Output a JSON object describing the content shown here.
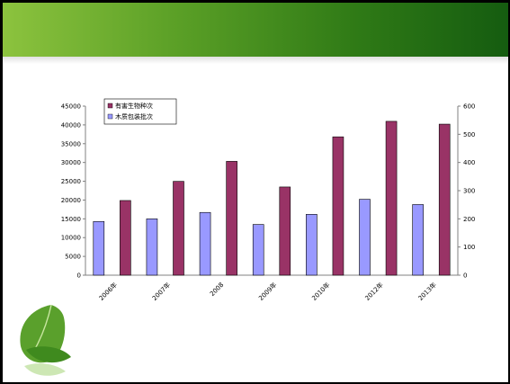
{
  "chart_data": {
    "type": "bar",
    "categories": [
      "2006年",
      "2007年",
      "2008",
      "2009年",
      "2010年",
      "2012年",
      "2013年"
    ],
    "series": [
      {
        "name": "有害生物种次",
        "axis": "right",
        "color": "#993366",
        "values": [
          265,
          333,
          404,
          313,
          491,
          546,
          536
        ]
      },
      {
        "name": "木质包装批次",
        "axis": "left",
        "color": "#9999ff",
        "values": [
          14300,
          15000,
          16700,
          13500,
          16200,
          20200,
          18800
        ]
      }
    ],
    "bar_order": [
      {
        "series": 1,
        "index": 0
      },
      {
        "series": 0,
        "index": 0
      },
      {
        "series": 1,
        "index": 1
      },
      {
        "series": 0,
        "index": 1
      },
      {
        "series": 1,
        "index": 2
      },
      {
        "series": 0,
        "index": 2
      },
      {
        "series": 1,
        "index": 3
      },
      {
        "series": 0,
        "index": 3
      },
      {
        "series": 1,
        "index": 4
      },
      {
        "series": 0,
        "index": 4
      },
      {
        "series": 1,
        "index": 5
      },
      {
        "series": 0,
        "index": 5
      },
      {
        "series": 1,
        "index": 6
      },
      {
        "series": 0,
        "index": 6
      }
    ],
    "y_left": {
      "min": 0,
      "max": 45000,
      "ticks": [
        "0",
        "5000",
        "10000",
        "15000",
        "20000",
        "25000",
        "30000",
        "35000",
        "40000",
        "45000"
      ]
    },
    "y_right": {
      "min": 0,
      "max": 600,
      "ticks": [
        "0",
        "100",
        "200",
        "300",
        "400",
        "500",
        "600"
      ]
    },
    "legend_position": "top-left",
    "grid": false
  },
  "colors": {
    "header_start": "#8cc33e",
    "header_end": "#155c10",
    "leaf": "#3f8a1e"
  }
}
